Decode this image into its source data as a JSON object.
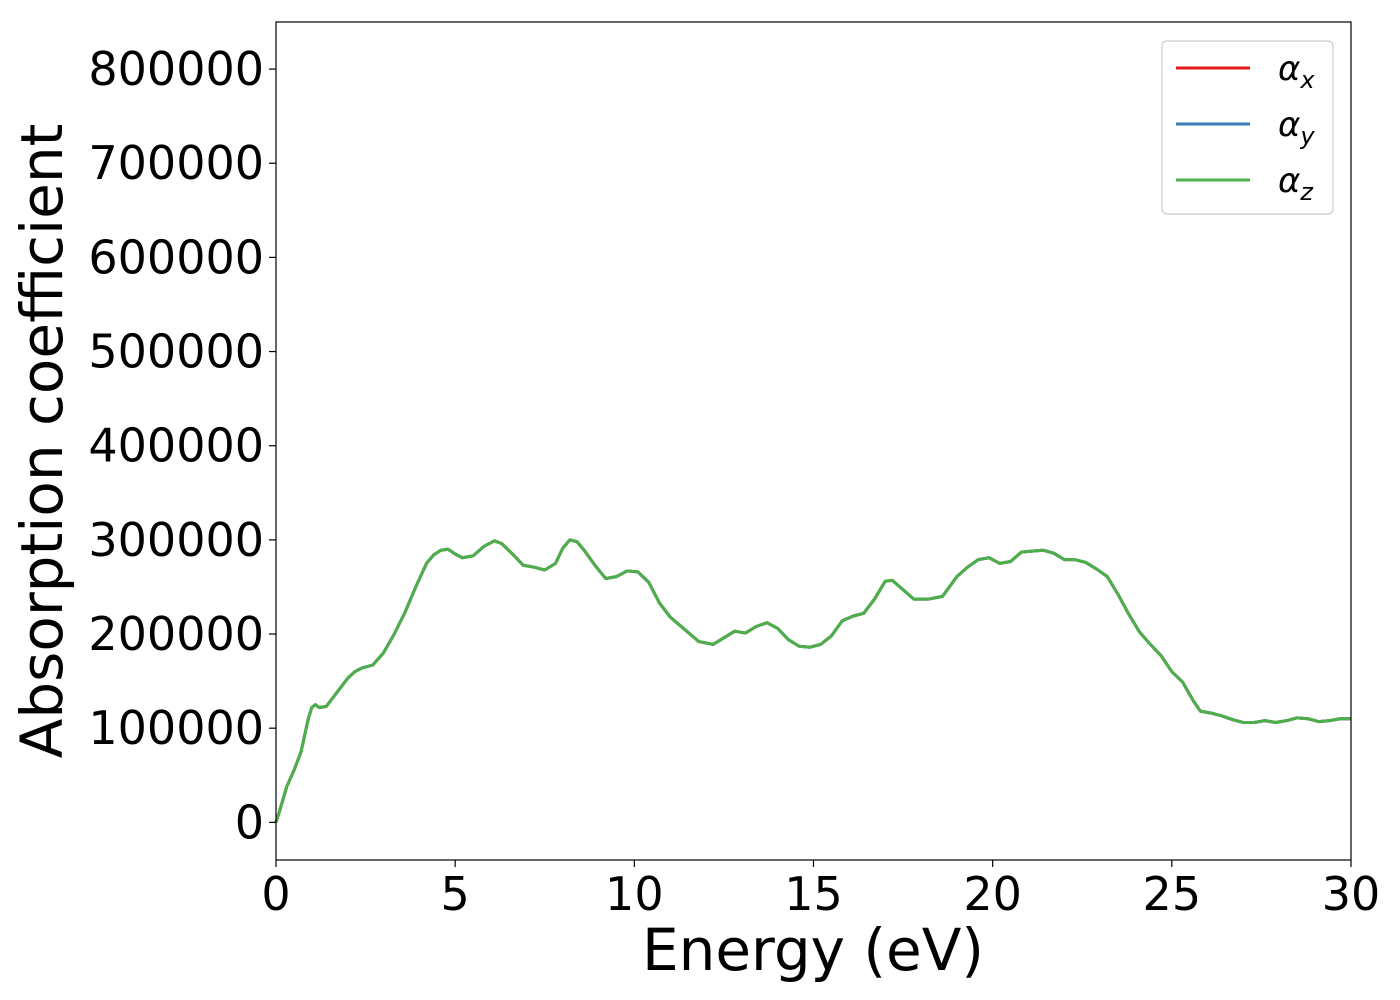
{
  "chart_data": {
    "type": "line",
    "title": "",
    "xlabel": "Energy (eV)",
    "ylabel": "Absorption coefficient",
    "xlim": [
      0,
      30
    ],
    "ylim": [
      -40000,
      850000
    ],
    "xticks": [
      0,
      5,
      10,
      15,
      20,
      25,
      30
    ],
    "xtick_labels": [
      "0",
      "5",
      "10",
      "15",
      "20",
      "25",
      "30"
    ],
    "yticks": [
      0,
      100000,
      200000,
      300000,
      400000,
      500000,
      600000,
      700000,
      800000
    ],
    "ytick_labels": [
      "0",
      "100000",
      "200000",
      "300000",
      "400000",
      "500000",
      "600000",
      "700000",
      "800000"
    ],
    "grid": false,
    "legend_position": "top-right",
    "series": [
      {
        "name": "αx",
        "legend_main": "α",
        "legend_sub": "x",
        "color": "#e41a1c"
      },
      {
        "name": "αy",
        "legend_main": "α",
        "legend_sub": "y",
        "color": "#377eb8"
      },
      {
        "name": "αz",
        "legend_main": "α",
        "legend_sub": "z",
        "color": "#4daf4a"
      }
    ],
    "x": [
      0,
      0.1,
      0.3,
      0.5,
      0.7,
      0.9,
      1.0,
      1.1,
      1.2,
      1.4,
      1.6,
      1.8,
      2.0,
      2.2,
      2.4,
      2.7,
      3.0,
      3.3,
      3.6,
      3.9,
      4.2,
      4.4,
      4.6,
      4.8,
      5.0,
      5.2,
      5.5,
      5.8,
      6.1,
      6.3,
      6.6,
      6.9,
      7.2,
      7.5,
      7.8,
      8.0,
      8.2,
      8.4,
      8.6,
      8.9,
      9.2,
      9.5,
      9.8,
      10.1,
      10.4,
      10.7,
      11.0,
      11.4,
      11.8,
      12.2,
      12.5,
      12.8,
      13.1,
      13.4,
      13.7,
      14.0,
      14.3,
      14.6,
      14.9,
      15.2,
      15.5,
      15.8,
      16.1,
      16.4,
      16.7,
      17.0,
      17.2,
      17.5,
      17.8,
      18.2,
      18.6,
      19.0,
      19.3,
      19.6,
      19.9,
      20.2,
      20.5,
      20.8,
      21.1,
      21.4,
      21.7,
      22.0,
      22.3,
      22.6,
      22.9,
      23.2,
      23.5,
      23.8,
      24.1,
      24.4,
      24.7,
      25.0,
      25.3,
      25.6,
      25.8,
      26.1,
      26.4,
      26.7,
      27.0,
      27.3,
      27.6,
      27.9,
      28.2,
      28.5,
      28.8,
      29.1,
      29.4,
      29.7,
      30.0
    ],
    "y": [
      0,
      12000,
      38000,
      55000,
      75000,
      110000,
      122000,
      125000,
      122000,
      123000,
      133000,
      143000,
      153000,
      160000,
      164000,
      167000,
      180000,
      200000,
      223000,
      250000,
      275000,
      284000,
      289000,
      290000,
      285000,
      281000,
      283000,
      293000,
      299000,
      296000,
      285000,
      273000,
      271000,
      268000,
      275000,
      291000,
      300000,
      298000,
      289000,
      273000,
      259000,
      261000,
      267000,
      266000,
      255000,
      233000,
      218000,
      205000,
      192000,
      189000,
      196000,
      203000,
      201000,
      208000,
      212000,
      206000,
      194000,
      187000,
      186000,
      189000,
      198000,
      214000,
      219000,
      222000,
      237000,
      256000,
      257000,
      247000,
      237000,
      237000,
      240000,
      261000,
      271000,
      279000,
      281000,
      275000,
      277000,
      287000,
      288000,
      289000,
      286000,
      279000,
      279000,
      276000,
      269000,
      261000,
      242000,
      221000,
      202000,
      189000,
      177000,
      160000,
      149000,
      129000,
      118000,
      116000,
      113000,
      109000,
      106000,
      106000,
      108000,
      106000,
      108000,
      111000,
      110000,
      107000,
      108000,
      110000,
      110000
    ]
  }
}
